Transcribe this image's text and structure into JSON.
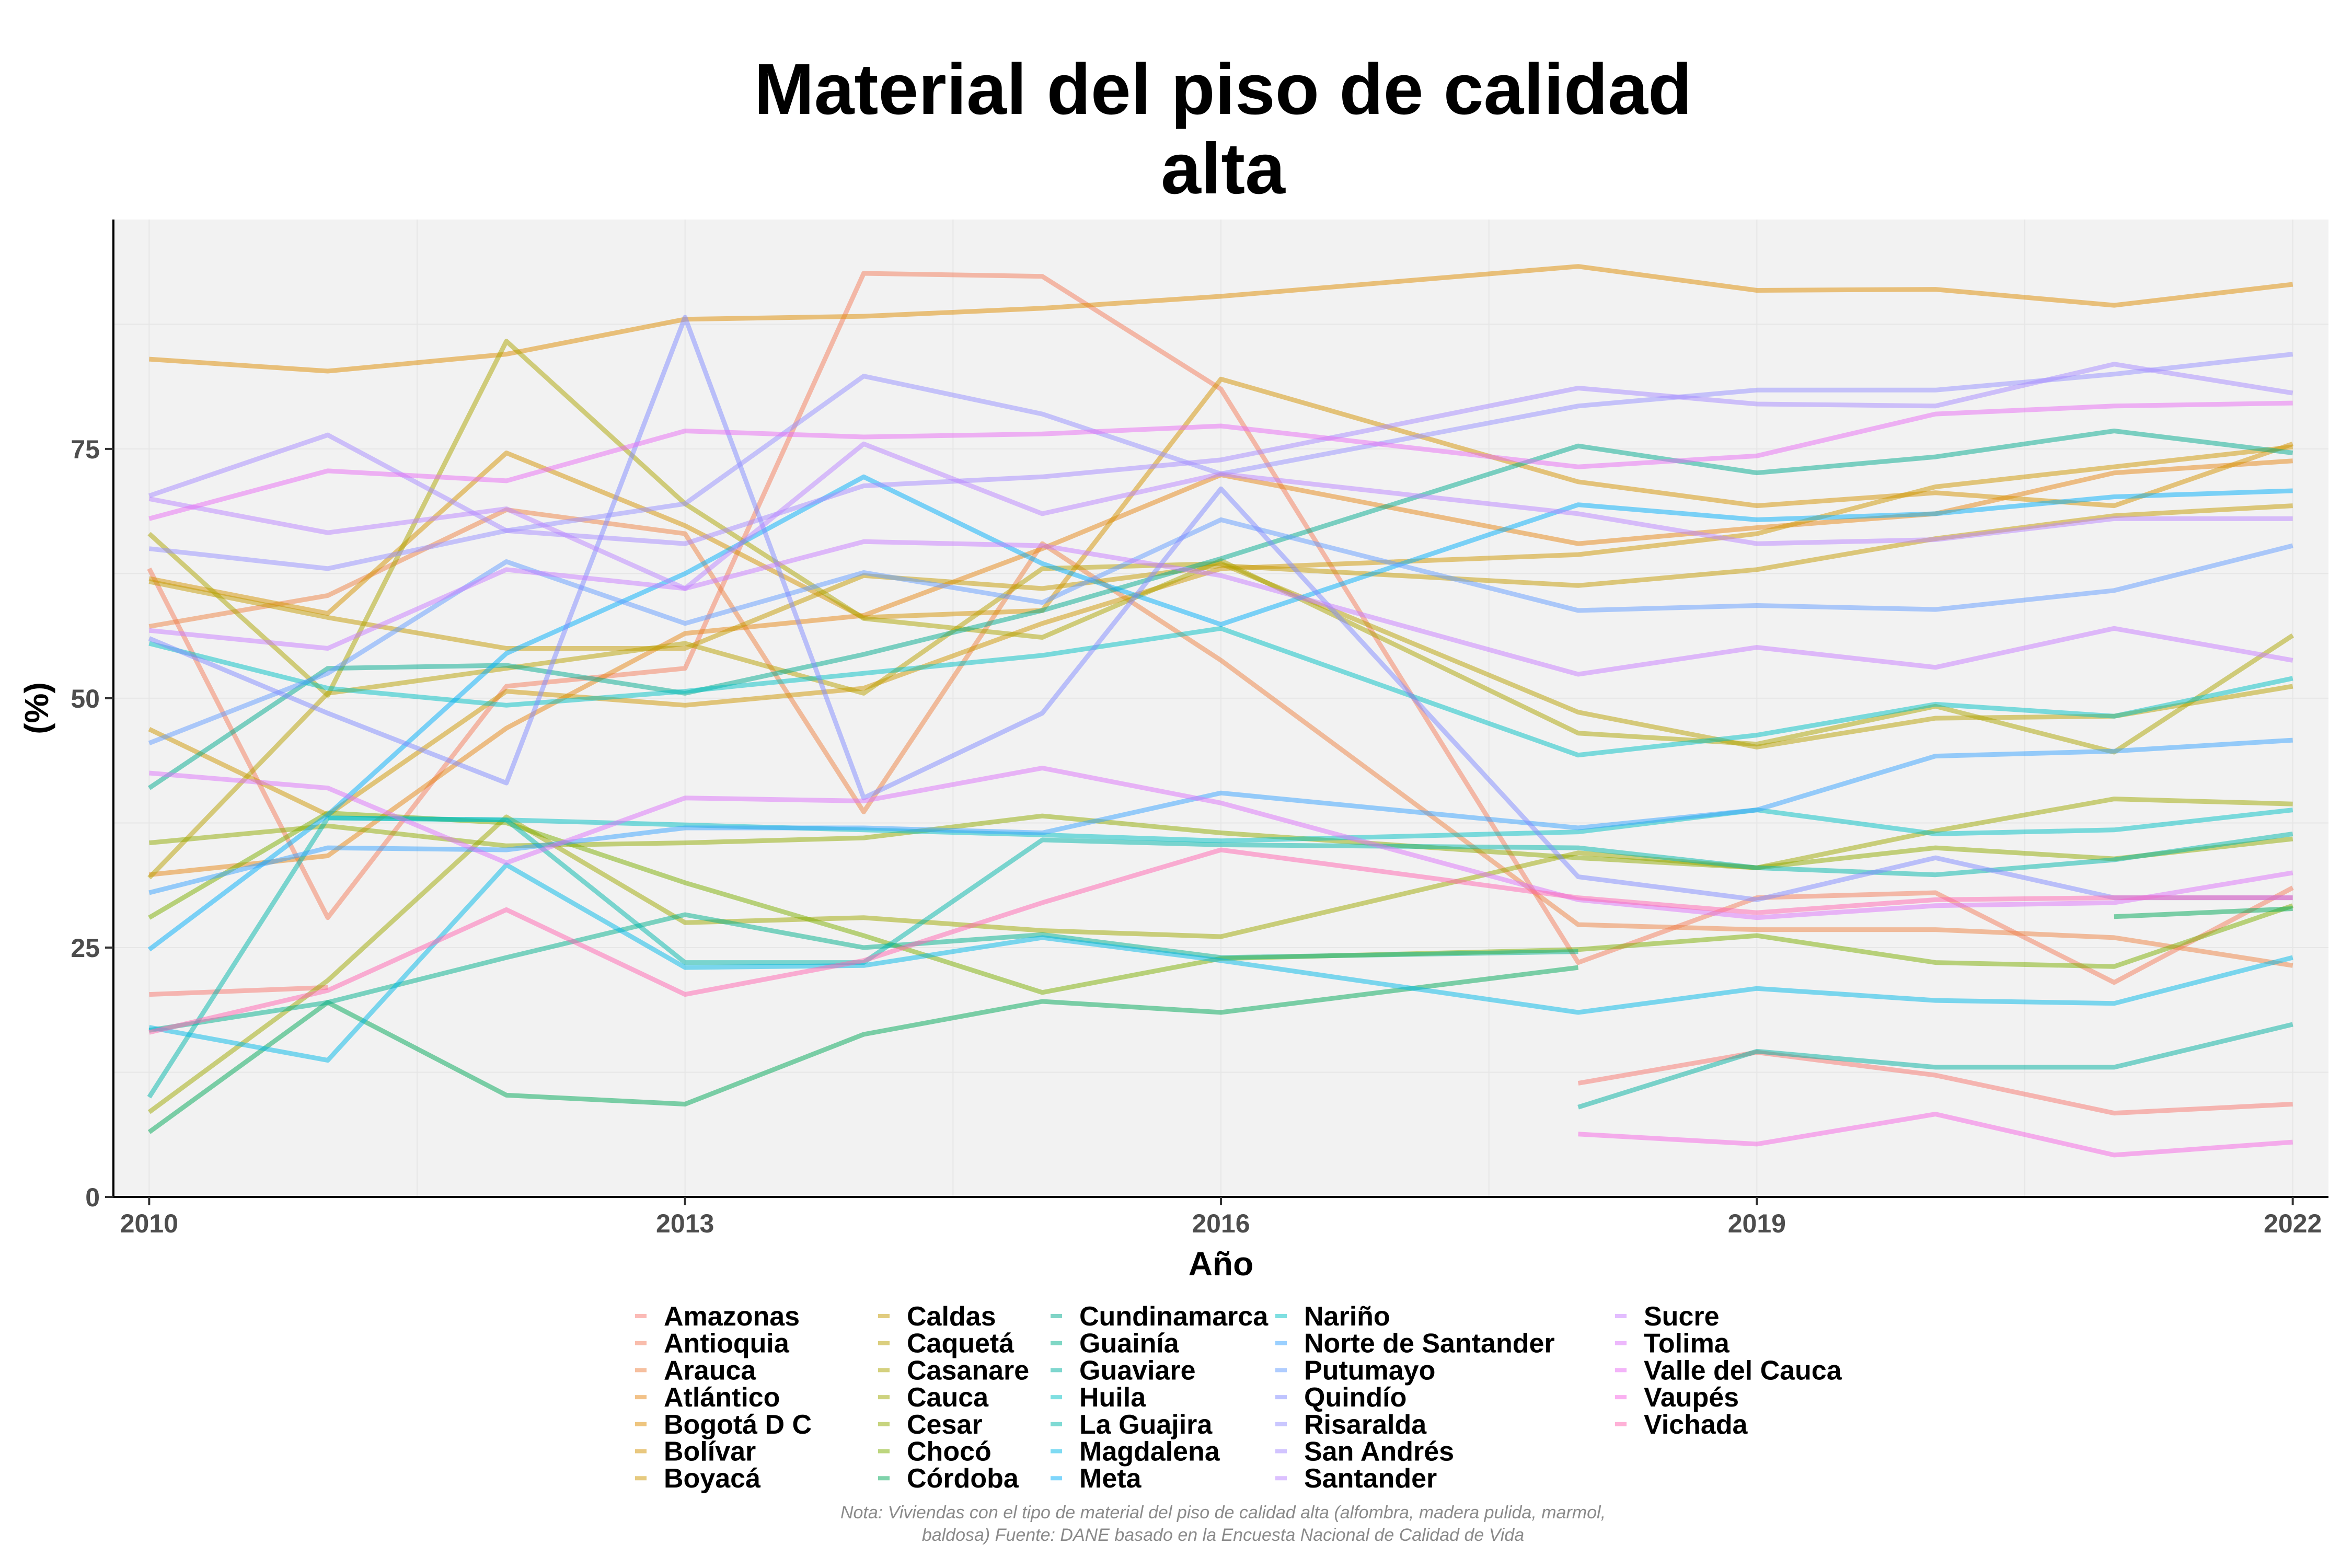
{
  "chart_data": {
    "type": "line",
    "title": [
      "Material del piso de calidad",
      "alta"
    ],
    "xlabel": "Año",
    "ylabel": "(%)",
    "xlim": [
      2009.8,
      2022.2
    ],
    "ylim": [
      0,
      98
    ],
    "x_ticks": [
      2010,
      2013,
      2016,
      2019,
      2022
    ],
    "y_ticks": [
      0,
      25,
      50,
      75
    ],
    "grid": true,
    "legend_position": "bottom",
    "caption": [
      "Nota: Viviendas con el tipo de material del piso de calidad alta (alfombra, madera pulida, marmol,",
      "baldosa) Fuente: DANE basado en la Encuesta Nacional de Calidad de Vida"
    ],
    "years": [
      2010,
      2011,
      2012,
      2013,
      2014,
      2015,
      2016,
      2018,
      2019,
      2020,
      2021,
      2022
    ],
    "series": [
      {
        "name": "Amazonas",
        "color": "#F8766D",
        "values": [
          20.3,
          21.0,
          null,
          null,
          null,
          null,
          null,
          11.4,
          14.5,
          12.2,
          8.4,
          9.3
        ]
      },
      {
        "name": "Antioquia",
        "color": "#F37B59",
        "values": [
          63.0,
          28.0,
          51.2,
          53.0,
          92.6,
          92.3,
          81.0,
          23.5,
          30.0,
          30.5,
          21.5,
          31.0
        ]
      },
      {
        "name": "Arauca",
        "color": "#ED8141",
        "values": [
          57.2,
          60.3,
          68.9,
          66.5,
          38.6,
          65.5,
          53.8,
          27.3,
          26.8,
          26.8,
          26.0,
          23.2
        ]
      },
      {
        "name": "Atlántico",
        "color": "#E68613",
        "values": [
          32.3,
          34.2,
          47.0,
          56.5,
          58.3,
          65.0,
          72.4,
          65.5,
          67.1,
          68.5,
          72.6,
          73.8
        ]
      },
      {
        "name": "Bogotá D C",
        "color": "#DE8C00",
        "values": [
          84.0,
          82.8,
          84.5,
          88.0,
          88.3,
          89.1,
          90.3,
          93.3,
          90.9,
          91.0,
          89.4,
          91.5
        ]
      },
      {
        "name": "Bolívar",
        "color": "#D49200",
        "values": [
          62.0,
          58.5,
          74.6,
          67.3,
          58.1,
          58.8,
          82.0,
          71.7,
          69.3,
          70.6,
          69.3,
          75.5
        ]
      },
      {
        "name": "Boyacá",
        "color": "#CD9600",
        "values": [
          46.9,
          38.3,
          50.7,
          49.3,
          51.0,
          57.5,
          63.0,
          64.4,
          66.5,
          71.2,
          73.2,
          75.2
        ]
      },
      {
        "name": "Caldas",
        "color": "#C49A00",
        "values": [
          61.7,
          58.1,
          55.0,
          55.0,
          62.3,
          61.0,
          63.3,
          61.3,
          62.9,
          66.0,
          68.3,
          69.3
        ]
      },
      {
        "name": "Caquetá",
        "color": "#B79F00",
        "values": [
          32.0,
          50.5,
          53.0,
          55.5,
          50.5,
          63.0,
          63.5,
          48.6,
          45.1,
          48.0,
          48.2,
          51.2
        ]
      },
      {
        "name": "Casanare",
        "color": "#ABA300",
        "values": [
          66.5,
          50.3,
          85.8,
          69.5,
          58.0,
          56.1,
          63.8,
          46.5,
          45.4,
          49.2,
          44.6,
          56.3
        ]
      },
      {
        "name": "Cauca",
        "color": "#9DA700",
        "values": [
          8.5,
          21.7,
          38.1,
          27.5,
          28.0,
          26.7,
          26.1,
          34.5,
          33.0,
          36.7,
          39.9,
          39.4
        ]
      },
      {
        "name": "Cesar",
        "color": "#8FAA00",
        "values": [
          35.5,
          37.2,
          35.2,
          35.5,
          36.0,
          38.2,
          36.5,
          34.0,
          33.0,
          35.0,
          33.9,
          35.9
        ]
      },
      {
        "name": "Chocó",
        "color": "#7CAE00",
        "values": [
          28.0,
          38.5,
          37.5,
          31.5,
          26.2,
          20.5,
          23.9,
          24.8,
          26.2,
          23.5,
          23.1,
          29.2
        ]
      },
      {
        "name": "Córdoba",
        "color": "#00A857",
        "values": [
          6.5,
          19.5,
          10.2,
          9.3,
          16.3,
          19.6,
          18.5,
          23.0,
          null,
          null,
          28.1,
          28.9
        ]
      },
      {
        "name": "Cundinamarca",
        "color": "#00AA8E",
        "values": [
          41.0,
          53.0,
          53.3,
          50.5,
          54.4,
          58.8,
          64.0,
          75.3,
          72.6,
          74.2,
          76.8,
          74.6
        ]
      },
      {
        "name": "Guainía",
        "color": "#00AF8C",
        "values": [
          16.7,
          19.5,
          24.0,
          28.3,
          25.0,
          26.3,
          24.0,
          24.6,
          null,
          null,
          null,
          null
        ]
      },
      {
        "name": "Guaviare",
        "color": "#00B0A0",
        "values": [
          null,
          null,
          null,
          null,
          null,
          null,
          null,
          9.0,
          14.6,
          13.0,
          13.0,
          17.3
        ]
      },
      {
        "name": "Huila",
        "color": "#00BFC4",
        "values": [
          55.5,
          51.0,
          49.3,
          50.7,
          52.5,
          54.3,
          57.0,
          44.3,
          46.3,
          49.4,
          48.2,
          52.0
        ]
      },
      {
        "name": "La Guajira",
        "color": "#00B5AA",
        "values": [
          10.0,
          38.0,
          37.8,
          23.5,
          23.5,
          35.8,
          35.3,
          35.0,
          33.0,
          32.3,
          33.8,
          36.4
        ]
      },
      {
        "name": "Magdalena",
        "color": "#00B8E7",
        "values": [
          17.0,
          13.7,
          33.3,
          23.0,
          23.2,
          26.0,
          23.7,
          18.5,
          20.9,
          19.7,
          19.4,
          24.0
        ]
      },
      {
        "name": "Meta",
        "color": "#00AEFA",
        "values": [
          24.8,
          38.3,
          54.5,
          62.5,
          72.2,
          63.5,
          57.4,
          69.4,
          67.9,
          68.5,
          70.2,
          70.8
        ]
      },
      {
        "name": "Nariño",
        "color": "#00BFC4",
        "values": [
          null,
          38.0,
          37.8,
          37.3,
          36.8,
          36.3,
          35.7,
          36.6,
          38.8,
          36.4,
          36.8,
          38.8
        ]
      },
      {
        "name": "Norte de Santander",
        "color": "#35A2FF",
        "values": [
          30.5,
          35.0,
          34.8,
          37.0,
          37.0,
          36.5,
          40.5,
          37.0,
          38.8,
          44.2,
          44.7,
          45.8
        ]
      },
      {
        "name": "Putumayo",
        "color": "#619CFF",
        "values": [
          45.5,
          52.5,
          63.7,
          57.5,
          62.6,
          59.6,
          67.9,
          58.8,
          59.3,
          58.9,
          60.8,
          65.3
        ]
      },
      {
        "name": "Quindío",
        "color": "#7F8AFF",
        "values": [
          56.0,
          48.5,
          41.5,
          88.2,
          40.0,
          48.5,
          71.0,
          32.1,
          29.8,
          34.0,
          30.0,
          30.0
        ]
      },
      {
        "name": "Risaralda",
        "color": "#9590FF",
        "values": [
          65.0,
          63.0,
          66.8,
          69.5,
          82.3,
          78.5,
          72.5,
          79.3,
          80.9,
          80.9,
          82.5,
          84.5
        ]
      },
      {
        "name": "San Andrés",
        "color": "#A58AFF",
        "values": [
          70.3,
          76.4,
          66.8,
          65.5,
          71.3,
          72.2,
          73.9,
          81.1,
          79.5,
          79.3,
          83.5,
          80.6
        ]
      },
      {
        "name": "Santander",
        "color": "#B983FF",
        "values": [
          70.0,
          66.6,
          69.0,
          61.0,
          75.5,
          68.5,
          72.5,
          68.5,
          65.5,
          65.9,
          68.0,
          68.0
        ]
      },
      {
        "name": "Sucre",
        "color": "#C77CFF",
        "values": [
          56.8,
          55.0,
          62.9,
          61.0,
          65.7,
          65.3,
          62.3,
          52.4,
          55.1,
          53.1,
          57.0,
          53.8
        ]
      },
      {
        "name": "Tolima",
        "color": "#DC71FA",
        "values": [
          42.5,
          41.0,
          33.5,
          40.0,
          39.7,
          43.0,
          39.5,
          29.8,
          28.0,
          29.2,
          29.5,
          32.5
        ]
      },
      {
        "name": "Valle del Cauca",
        "color": "#E76BF3",
        "values": [
          68.0,
          72.8,
          71.8,
          76.8,
          76.2,
          76.5,
          77.3,
          73.2,
          74.3,
          78.5,
          79.3,
          79.6
        ]
      },
      {
        "name": "Vaupés",
        "color": "#F564E3",
        "values": [
          null,
          null,
          null,
          null,
          null,
          null,
          null,
          6.3,
          5.3,
          8.3,
          4.2,
          5.5
        ]
      },
      {
        "name": "Vichada",
        "color": "#FF64B0",
        "values": [
          16.5,
          20.7,
          28.8,
          20.3,
          23.7,
          29.5,
          34.8,
          30.0,
          28.5,
          29.8,
          30.0,
          30.0
        ]
      }
    ]
  }
}
